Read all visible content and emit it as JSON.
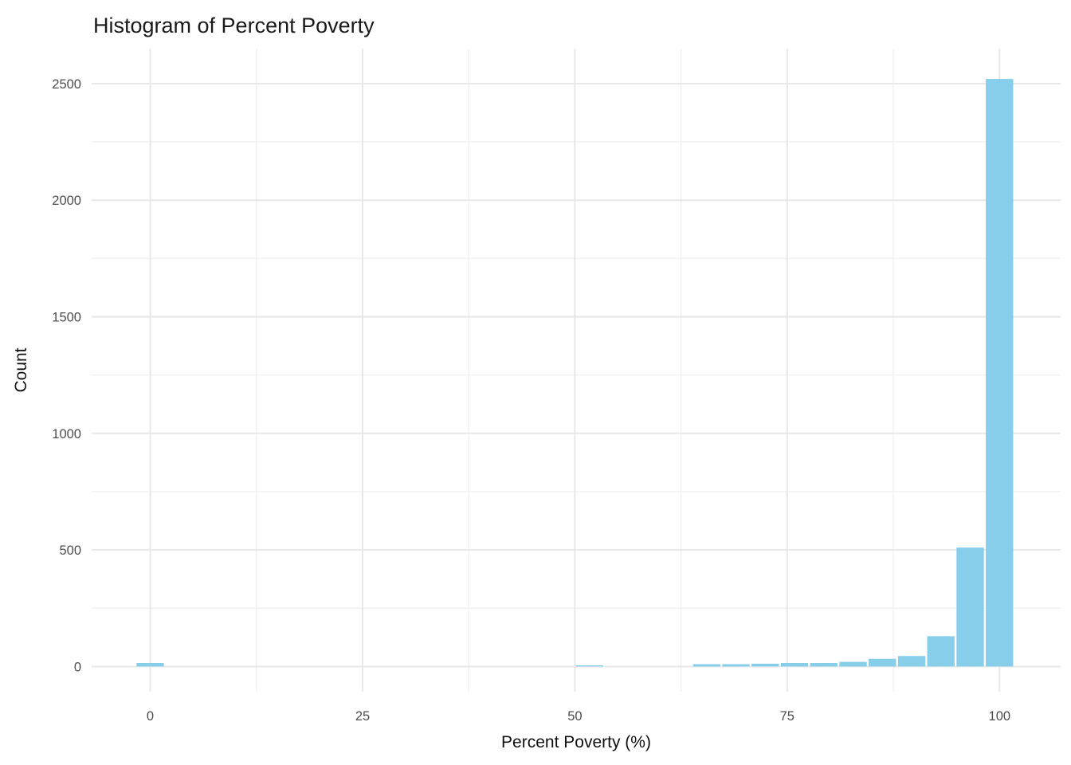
{
  "figure": {
    "kind": "histogram-plot",
    "background": "#ffffff"
  },
  "chart_data": {
    "type": "bar",
    "subtype": "histogram",
    "title": "Histogram of Percent Poverty",
    "xlabel": "Percent Poverty (%)",
    "ylabel": "Count",
    "binwidth": 3.448,
    "bins": [
      {
        "center": 0,
        "count": 15
      },
      {
        "center": 51.72,
        "count": 5
      },
      {
        "center": 65.52,
        "count": 10
      },
      {
        "center": 68.97,
        "count": 10
      },
      {
        "center": 72.41,
        "count": 12
      },
      {
        "center": 75.86,
        "count": 15
      },
      {
        "center": 79.31,
        "count": 15
      },
      {
        "center": 82.76,
        "count": 20
      },
      {
        "center": 86.21,
        "count": 33
      },
      {
        "center": 89.66,
        "count": 45
      },
      {
        "center": 93.1,
        "count": 130
      },
      {
        "center": 96.55,
        "count": 510
      },
      {
        "center": 100,
        "count": 2520
      }
    ],
    "x_ticks": [
      0,
      25,
      50,
      75,
      100
    ],
    "x_minor_gridlines": [
      12.5,
      37.5,
      62.5,
      87.5
    ],
    "y_ticks": [
      0,
      500,
      1000,
      1500,
      2000,
      2500
    ],
    "y_minor_gridlines": [
      250,
      750,
      1250,
      1750,
      2250
    ],
    "xlim": [
      -6.9,
      107.2
    ],
    "ylim": [
      -108,
      2650
    ],
    "grid": "major and minor, no axis lines, no tick marks",
    "legend_position": "none",
    "colors": {
      "bar_fill": "#87CEEB",
      "bar_separator": "#ffffff",
      "grid_major": "#e7e7e7",
      "grid_minor": "#f0f0f0",
      "tick_label": "#4d4d4d",
      "title_text": "#1a1a1a",
      "axis_title_text": "#111111",
      "panel_background": "#ffffff"
    }
  }
}
